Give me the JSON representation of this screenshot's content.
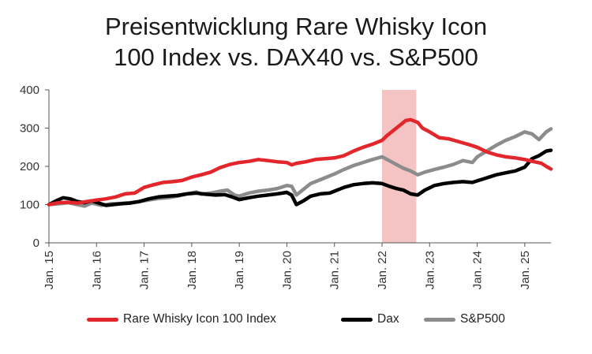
{
  "chart_data": {
    "type": "line",
    "title_line1": "Preisentwicklung Rare Whisky Icon",
    "title_line2": "100 Index vs. DAX40 vs. S&P500",
    "xlabel": "",
    "ylabel": "",
    "ylim": [
      0,
      400
    ],
    "yticks": [
      0,
      100,
      200,
      300,
      400
    ],
    "x_domain": [
      2015.0,
      2025.55
    ],
    "xtick_values": [
      2015,
      2016,
      2017,
      2018,
      2019,
      2020,
      2021,
      2022,
      2023,
      2024,
      2025
    ],
    "xticks": [
      "Jan. 15",
      "Jan. 16",
      "Jan. 17",
      "Jan. 18",
      "Jan. 19",
      "Jan. 20",
      "Jan. 21",
      "Jan. 22",
      "Jan. 23",
      "Jan. 24",
      "Jan. 25"
    ],
    "highlight_band": {
      "x_start": 2022.0,
      "x_end": 2022.72,
      "color": "#f4c4c4"
    },
    "grid": false,
    "legend_position": "bottom",
    "series": [
      {
        "name": "Rare Whisky Icon 100 Index",
        "color": "#e3262b",
        "points": [
          [
            2015.0,
            100
          ],
          [
            2015.2,
            105
          ],
          [
            2015.4,
            106
          ],
          [
            2015.6,
            104
          ],
          [
            2015.8,
            108
          ],
          [
            2016.0,
            112
          ],
          [
            2016.2,
            115
          ],
          [
            2016.4,
            120
          ],
          [
            2016.6,
            128
          ],
          [
            2016.8,
            130
          ],
          [
            2017.0,
            145
          ],
          [
            2017.2,
            152
          ],
          [
            2017.4,
            158
          ],
          [
            2017.6,
            160
          ],
          [
            2017.8,
            163
          ],
          [
            2018.0,
            172
          ],
          [
            2018.2,
            178
          ],
          [
            2018.4,
            185
          ],
          [
            2018.6,
            197
          ],
          [
            2018.8,
            205
          ],
          [
            2019.0,
            210
          ],
          [
            2019.2,
            213
          ],
          [
            2019.4,
            218
          ],
          [
            2019.6,
            215
          ],
          [
            2019.8,
            212
          ],
          [
            2020.0,
            210
          ],
          [
            2020.1,
            204
          ],
          [
            2020.2,
            208
          ],
          [
            2020.4,
            212
          ],
          [
            2020.6,
            218
          ],
          [
            2020.8,
            220
          ],
          [
            2021.0,
            222
          ],
          [
            2021.2,
            228
          ],
          [
            2021.4,
            240
          ],
          [
            2021.6,
            250
          ],
          [
            2021.8,
            258
          ],
          [
            2022.0,
            268
          ],
          [
            2022.1,
            280
          ],
          [
            2022.25,
            295
          ],
          [
            2022.4,
            310
          ],
          [
            2022.5,
            320
          ],
          [
            2022.6,
            322
          ],
          [
            2022.75,
            315
          ],
          [
            2022.85,
            300
          ],
          [
            2023.0,
            290
          ],
          [
            2023.2,
            275
          ],
          [
            2023.4,
            272
          ],
          [
            2023.6,
            265
          ],
          [
            2023.8,
            258
          ],
          [
            2024.0,
            250
          ],
          [
            2024.2,
            238
          ],
          [
            2024.4,
            230
          ],
          [
            2024.6,
            225
          ],
          [
            2024.8,
            222
          ],
          [
            2025.0,
            218
          ],
          [
            2025.2,
            212
          ],
          [
            2025.35,
            208
          ],
          [
            2025.45,
            200
          ],
          [
            2025.55,
            193
          ]
        ]
      },
      {
        "name": "Dax",
        "color": "#000000",
        "points": [
          [
            2015.0,
            100
          ],
          [
            2015.15,
            110
          ],
          [
            2015.3,
            118
          ],
          [
            2015.45,
            115
          ],
          [
            2015.6,
            108
          ],
          [
            2015.75,
            105
          ],
          [
            2015.9,
            110
          ],
          [
            2016.05,
            104
          ],
          [
            2016.2,
            98
          ],
          [
            2016.35,
            100
          ],
          [
            2016.5,
            102
          ],
          [
            2016.7,
            104
          ],
          [
            2016.9,
            108
          ],
          [
            2017.1,
            115
          ],
          [
            2017.3,
            120
          ],
          [
            2017.5,
            122
          ],
          [
            2017.7,
            124
          ],
          [
            2017.9,
            128
          ],
          [
            2018.1,
            130
          ],
          [
            2018.3,
            127
          ],
          [
            2018.5,
            125
          ],
          [
            2018.7,
            126
          ],
          [
            2018.85,
            120
          ],
          [
            2019.0,
            113
          ],
          [
            2019.2,
            118
          ],
          [
            2019.4,
            122
          ],
          [
            2019.6,
            125
          ],
          [
            2019.8,
            128
          ],
          [
            2020.0,
            132
          ],
          [
            2020.1,
            125
          ],
          [
            2020.2,
            100
          ],
          [
            2020.35,
            110
          ],
          [
            2020.5,
            122
          ],
          [
            2020.7,
            128
          ],
          [
            2020.9,
            130
          ],
          [
            2021.0,
            135
          ],
          [
            2021.2,
            145
          ],
          [
            2021.4,
            152
          ],
          [
            2021.6,
            155
          ],
          [
            2021.8,
            157
          ],
          [
            2022.0,
            155
          ],
          [
            2022.15,
            148
          ],
          [
            2022.3,
            142
          ],
          [
            2022.45,
            138
          ],
          [
            2022.6,
            128
          ],
          [
            2022.75,
            125
          ],
          [
            2022.9,
            138
          ],
          [
            2023.1,
            150
          ],
          [
            2023.3,
            155
          ],
          [
            2023.5,
            158
          ],
          [
            2023.7,
            160
          ],
          [
            2023.9,
            158
          ],
          [
            2024.0,
            162
          ],
          [
            2024.2,
            170
          ],
          [
            2024.4,
            178
          ],
          [
            2024.6,
            183
          ],
          [
            2024.8,
            188
          ],
          [
            2025.0,
            198
          ],
          [
            2025.15,
            220
          ],
          [
            2025.3,
            228
          ],
          [
            2025.45,
            240
          ],
          [
            2025.55,
            242
          ]
        ]
      },
      {
        "name": "S&P500",
        "color": "#8c8c8c",
        "points": [
          [
            2015.0,
            100
          ],
          [
            2015.2,
            102
          ],
          [
            2015.4,
            105
          ],
          [
            2015.6,
            100
          ],
          [
            2015.75,
            96
          ],
          [
            2015.9,
            104
          ],
          [
            2016.1,
            98
          ],
          [
            2016.3,
            102
          ],
          [
            2016.5,
            103
          ],
          [
            2016.7,
            105
          ],
          [
            2016.9,
            108
          ],
          [
            2017.1,
            112
          ],
          [
            2017.3,
            116
          ],
          [
            2017.5,
            118
          ],
          [
            2017.7,
            122
          ],
          [
            2017.9,
            128
          ],
          [
            2018.1,
            133
          ],
          [
            2018.2,
            127
          ],
          [
            2018.4,
            130
          ],
          [
            2018.6,
            135
          ],
          [
            2018.75,
            138
          ],
          [
            2018.9,
            125
          ],
          [
            2019.0,
            122
          ],
          [
            2019.2,
            130
          ],
          [
            2019.4,
            135
          ],
          [
            2019.6,
            138
          ],
          [
            2019.8,
            142
          ],
          [
            2020.0,
            150
          ],
          [
            2020.1,
            148
          ],
          [
            2020.2,
            125
          ],
          [
            2020.35,
            140
          ],
          [
            2020.5,
            155
          ],
          [
            2020.7,
            165
          ],
          [
            2020.9,
            175
          ],
          [
            2021.0,
            180
          ],
          [
            2021.2,
            192
          ],
          [
            2021.4,
            202
          ],
          [
            2021.6,
            210
          ],
          [
            2021.8,
            218
          ],
          [
            2022.0,
            225
          ],
          [
            2022.15,
            215
          ],
          [
            2022.3,
            205
          ],
          [
            2022.45,
            195
          ],
          [
            2022.6,
            188
          ],
          [
            2022.75,
            178
          ],
          [
            2022.9,
            185
          ],
          [
            2023.1,
            192
          ],
          [
            2023.3,
            198
          ],
          [
            2023.5,
            205
          ],
          [
            2023.7,
            215
          ],
          [
            2023.9,
            210
          ],
          [
            2024.0,
            225
          ],
          [
            2024.2,
            240
          ],
          [
            2024.4,
            255
          ],
          [
            2024.6,
            268
          ],
          [
            2024.8,
            278
          ],
          [
            2025.0,
            290
          ],
          [
            2025.15,
            285
          ],
          [
            2025.3,
            270
          ],
          [
            2025.45,
            290
          ],
          [
            2025.55,
            298
          ]
        ]
      }
    ]
  }
}
